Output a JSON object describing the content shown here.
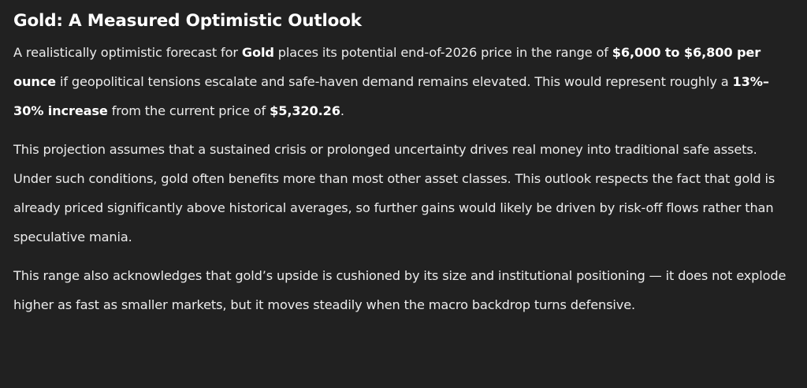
{
  "heading": "Gold: A Measured Optimistic Outlook",
  "p1": {
    "t1": "A realistically optimistic forecast for ",
    "b1": "Gold",
    "t2": " places its potential end-of-2026 price in the range of ",
    "b2": "$6,000 to $6,800 per ounce",
    "t3": " if geopolitical tensions escalate and safe-haven demand remains elevated. This would represent roughly a ",
    "b3": "13%–30% increase",
    "t4": " from the current price of ",
    "b4": "$5,320.26",
    "t5": "."
  },
  "p2": "This projection assumes that a sustained crisis or prolonged uncertainty drives real money into traditional safe assets. Under such conditions, gold often benefits more than most other asset classes. This outlook respects the fact that gold is already priced significantly above historical averages, so further gains would likely be driven by risk-off flows rather than speculative mania.",
  "p3": "This range also acknowledges that gold’s upside is cushioned by its size and institutional positioning — it does not explode higher as fast as smaller markets, but it moves steadily when the macro backdrop turns defensive."
}
